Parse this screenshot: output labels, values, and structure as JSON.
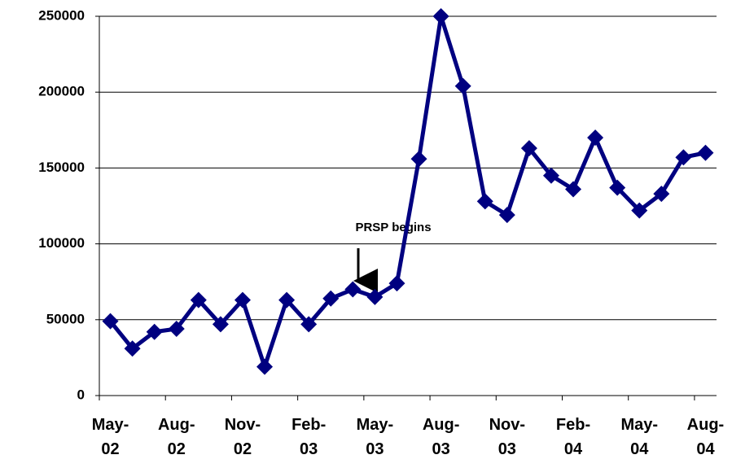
{
  "chart_data": {
    "type": "line",
    "categories": [
      "May-02",
      null,
      null,
      "Aug-02",
      null,
      null,
      "Nov-02",
      null,
      null,
      "Feb-03",
      null,
      null,
      "May-03",
      null,
      null,
      "Aug-03",
      null,
      null,
      "Nov-03",
      null,
      null,
      "Feb-04",
      null,
      null,
      "May-04",
      null,
      null,
      "Aug-04"
    ],
    "series": [
      {
        "name": null,
        "color": "#000080",
        "values": [
          49000,
          31000,
          42000,
          44000,
          63000,
          47000,
          63000,
          19000,
          63000,
          47000,
          64000,
          70000,
          65000,
          74000,
          156000,
          250000,
          204000,
          128000,
          119000,
          163000,
          145000,
          136000,
          170000,
          137000,
          122000,
          133000,
          157000,
          160000
        ]
      }
    ],
    "ylim": [
      0,
      250000
    ],
    "yticks": [
      0,
      50000,
      100000,
      150000,
      200000,
      250000
    ],
    "grid": true,
    "annotation": "PRSP begins"
  }
}
